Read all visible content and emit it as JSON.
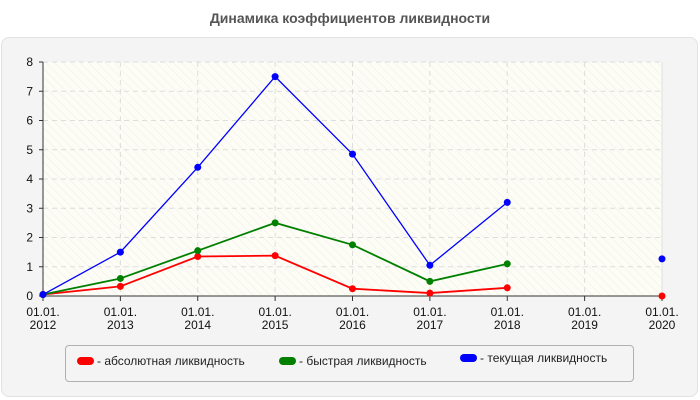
{
  "title": "Динамика коэффициентов ликвидности",
  "legend": {
    "items": [
      {
        "label": "- абсолютная ликвидность",
        "color": "#ff0000"
      },
      {
        "label": "- быстрая ликвидность",
        "color": "#008000"
      },
      {
        "label": "- текущая ликвидность",
        "color": "#0000ff"
      }
    ]
  },
  "chart_data": {
    "type": "line",
    "title": "Динамика коэффициентов ликвидности",
    "xlabel": "",
    "ylabel": "",
    "ylim": [
      0,
      8
    ],
    "yticks": [
      "0",
      "1",
      "2",
      "3",
      "4",
      "5",
      "6",
      "7",
      "8"
    ],
    "categories": [
      "01.01. 2012",
      "01.01. 2013",
      "01.01. 2014",
      "01.01. 2015",
      "01.01. 2016",
      "01.01. 2017",
      "01.01. 2018",
      "01.01. 2019",
      "01.01. 2020"
    ],
    "grid": true,
    "legend_position": "bottom",
    "series": [
      {
        "name": "абсолютная ликвидность",
        "color": "#ff0000",
        "values": [
          0.05,
          0.33,
          1.35,
          1.38,
          0.25,
          0.1,
          0.28,
          null,
          0.0
        ]
      },
      {
        "name": "быстрая ликвидность",
        "color": "#008000",
        "values": [
          0.05,
          0.6,
          1.55,
          2.5,
          1.75,
          0.5,
          1.1,
          null,
          null
        ]
      },
      {
        "name": "текущая ликвидность",
        "color": "#0000ff",
        "values": [
          0.05,
          1.5,
          4.4,
          7.5,
          4.85,
          1.05,
          3.2,
          null,
          1.27
        ]
      }
    ]
  }
}
